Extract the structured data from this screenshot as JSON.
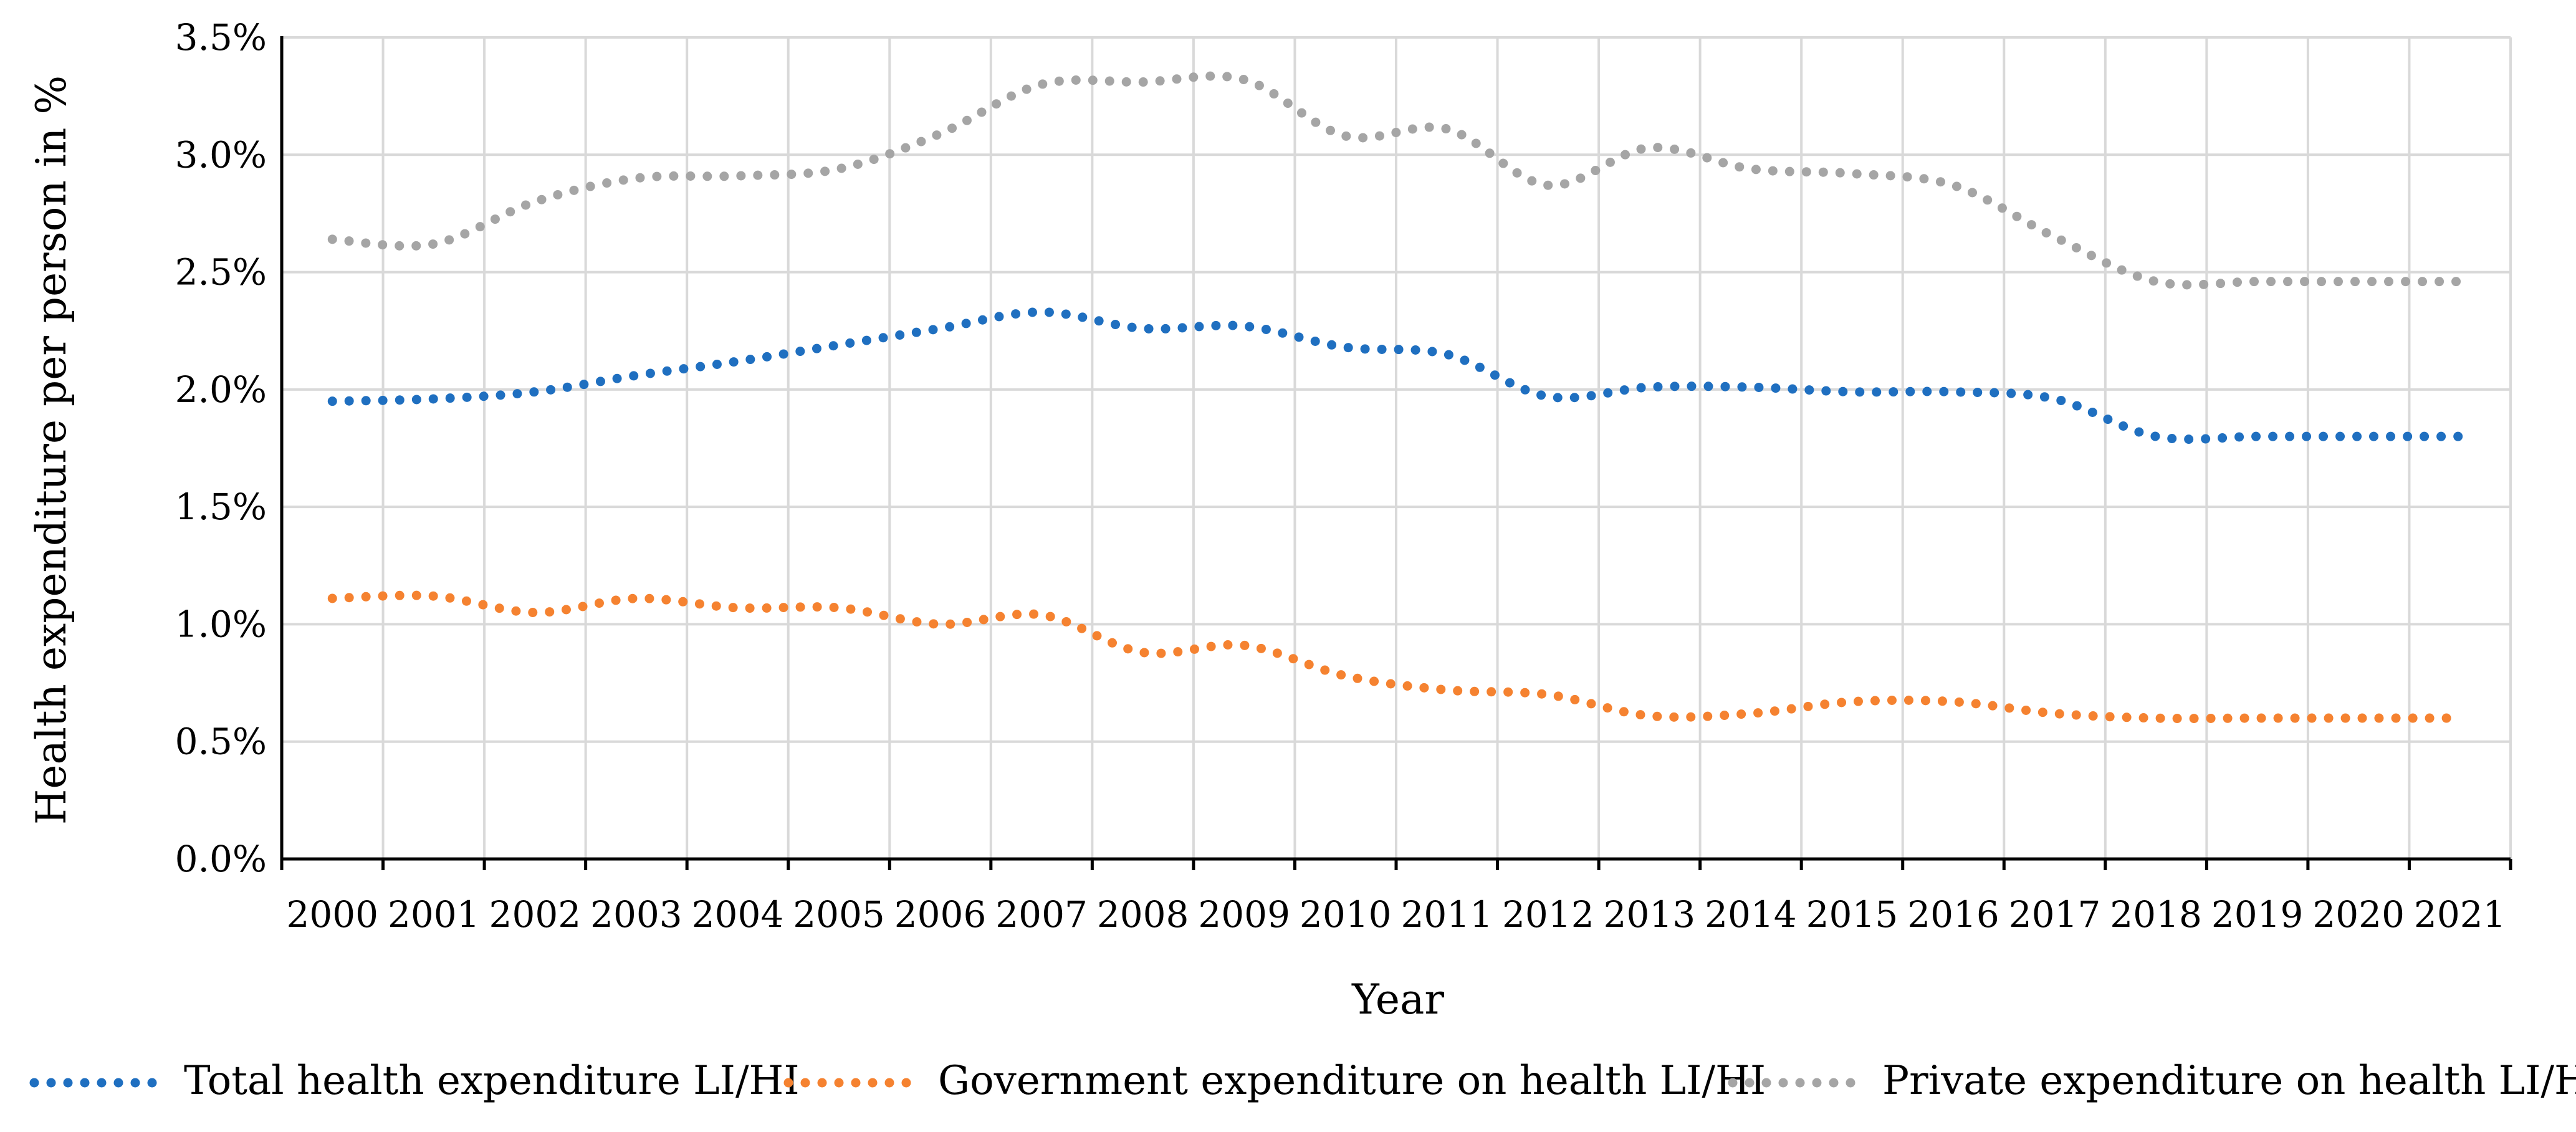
{
  "chart_data": {
    "type": "line",
    "title": "",
    "xlabel": "Year",
    "ylabel": "Health expenditure per person in %",
    "categories": [
      "2000",
      "2001",
      "2002",
      "2003",
      "2004",
      "2005",
      "2006",
      "2007",
      "2008",
      "2009",
      "2010",
      "2011",
      "2012",
      "2013",
      "2014",
      "2015",
      "2016",
      "2017",
      "2018",
      "2019",
      "2020",
      "2021"
    ],
    "x": [
      2000,
      2001,
      2002,
      2003,
      2004,
      2005,
      2006,
      2007,
      2008,
      2009,
      2010,
      2011,
      2012,
      2013,
      2014,
      2015,
      2016,
      2017,
      2018,
      2019,
      2020,
      2021
    ],
    "ylim": [
      0,
      0.035
    ],
    "yticks": [
      "0.0%",
      "0.5%",
      "1.0%",
      "1.5%",
      "2.0%",
      "2.5%",
      "3.0%",
      "3.5%"
    ],
    "grid": true,
    "legend_position": "bottom",
    "series": [
      {
        "name": "Total health expenditure LI/HI",
        "color": "#1f6fc0",
        "style": "dotted",
        "values": [
          0.0195,
          0.0196,
          0.0199,
          0.0206,
          0.0212,
          0.0219,
          0.0226,
          0.0233,
          0.0226,
          0.0227,
          0.0218,
          0.0215,
          0.0197,
          0.0201,
          0.0201,
          0.0199,
          0.0199,
          0.0196,
          0.018,
          0.018,
          0.018,
          0.018
        ]
      },
      {
        "name": "Government expenditure on health LI/HI",
        "color": "#f58230",
        "style": "dotted",
        "values": [
          0.0111,
          0.0112,
          0.0105,
          0.0111,
          0.0107,
          0.0107,
          0.01,
          0.0104,
          0.0088,
          0.0091,
          0.0078,
          0.0072,
          0.007,
          0.0061,
          0.0062,
          0.0067,
          0.0067,
          0.0062,
          0.006,
          0.006,
          0.006,
          0.006
        ]
      },
      {
        "name": "Private expenditure on health LI/HI",
        "color": "#a5a5a5",
        "style": "dotted",
        "values": [
          0.0264,
          0.0262,
          0.028,
          0.029,
          0.0291,
          0.0294,
          0.0309,
          0.033,
          0.0331,
          0.0332,
          0.0308,
          0.0311,
          0.0287,
          0.0303,
          0.0294,
          0.0292,
          0.0287,
          0.0265,
          0.0246,
          0.0246,
          0.0246,
          0.0246
        ]
      }
    ]
  }
}
